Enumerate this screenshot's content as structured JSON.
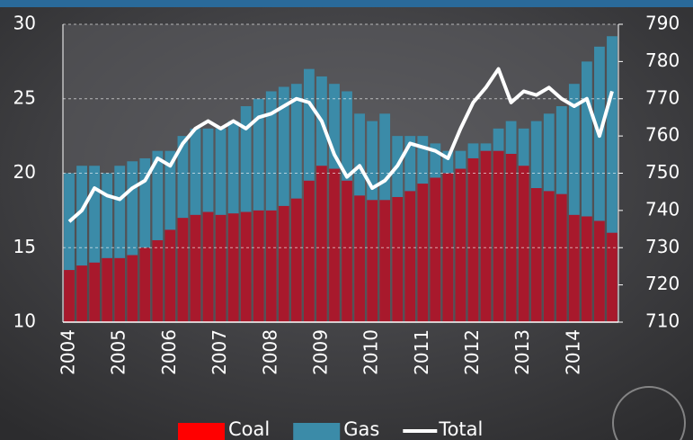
{
  "chart_data": {
    "type": "bar-line",
    "categories": [
      "2004",
      null,
      null,
      null,
      "2005",
      null,
      null,
      null,
      "2006",
      null,
      null,
      null,
      "2007",
      null,
      null,
      null,
      "2008",
      null,
      null,
      null,
      "2009",
      null,
      null,
      null,
      "2010",
      null,
      null,
      null,
      "2011",
      null,
      null,
      null,
      "2012",
      null,
      null,
      null,
      "2013",
      null,
      null,
      null,
      "2014",
      null,
      null,
      null
    ],
    "series": [
      {
        "name": "Gas",
        "color": "#3b8ba8",
        "values": [
          20,
          20.5,
          20.5,
          20,
          20.5,
          20.8,
          21,
          21.5,
          21.5,
          22.5,
          23,
          23,
          23,
          23.5,
          24.5,
          25,
          25.5,
          25.8,
          26,
          27,
          26.5,
          26,
          25.5,
          24,
          23.5,
          24,
          22.5,
          22.5,
          22.5,
          22,
          21.5,
          21.5,
          22,
          22,
          23,
          23.5,
          23,
          23.5,
          24,
          24.5,
          26,
          27.5,
          28.5,
          29.2
        ]
      },
      {
        "name": "Coal",
        "color": "#a8192c",
        "values": [
          13.5,
          13.8,
          14,
          14.3,
          14.3,
          14.5,
          15,
          15.5,
          16.2,
          17,
          17.2,
          17.4,
          17.2,
          17.3,
          17.4,
          17.5,
          17.5,
          17.8,
          18.3,
          19.5,
          20.5,
          20.3,
          19.5,
          18.5,
          18.2,
          18.2,
          18.4,
          18.8,
          19.3,
          19.7,
          20,
          20.3,
          21,
          21.5,
          21.5,
          21.3,
          20.5,
          19,
          18.8,
          18.6,
          17.2,
          17.1,
          16.8,
          16
        ]
      },
      {
        "name": "Total",
        "color": "#ffffff",
        "axis": "y2",
        "values": [
          737,
          740,
          746,
          744,
          743,
          746,
          748,
          754,
          752,
          758,
          762,
          764,
          762,
          764,
          762,
          765,
          766,
          768,
          770,
          769,
          764,
          755,
          749,
          752,
          746,
          748,
          752,
          758,
          757,
          756,
          754,
          762,
          769,
          773,
          778,
          769,
          772,
          771,
          773,
          770,
          768,
          770,
          760,
          772
        ]
      }
    ],
    "legend_order": [
      "Coal",
      "Gas",
      "Total"
    ],
    "ylim": [
      10,
      30
    ],
    "yticks": [
      10,
      15,
      20,
      25,
      30
    ],
    "y2lim": [
      710,
      790
    ],
    "y2ticks": [
      710,
      720,
      730,
      740,
      750,
      760,
      770,
      780,
      790
    ],
    "grid": true
  }
}
